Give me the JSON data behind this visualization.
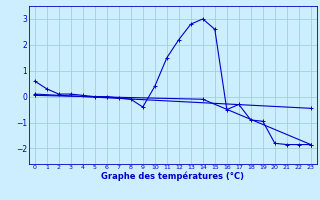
{
  "xlabel": "Graphe des températures (°C)",
  "background_color": "#cceeff",
  "line_color": "#0000cc",
  "xlim": [
    -0.5,
    23.5
  ],
  "ylim": [
    -2.6,
    3.5
  ],
  "yticks": [
    -2,
    -1,
    0,
    1,
    2,
    3
  ],
  "xticks": [
    0,
    1,
    2,
    3,
    4,
    5,
    6,
    7,
    8,
    9,
    10,
    11,
    12,
    13,
    14,
    15,
    16,
    17,
    18,
    19,
    20,
    21,
    22,
    23
  ],
  "line1_x": [
    0,
    1,
    2,
    3,
    4,
    5,
    6,
    7,
    8,
    9,
    10,
    11,
    12,
    13,
    14,
    15,
    16,
    17,
    18,
    19,
    20,
    21,
    22,
    23
  ],
  "line1_y": [
    0.6,
    0.3,
    0.1,
    0.1,
    0.05,
    0.0,
    0.0,
    -0.05,
    -0.1,
    -0.4,
    0.4,
    1.5,
    2.2,
    2.8,
    3.0,
    2.6,
    -0.5,
    -0.3,
    -0.9,
    -0.95,
    -1.8,
    -1.85,
    -1.85,
    -1.85
  ],
  "line2_x": [
    0,
    23
  ],
  "line2_y": [
    0.1,
    -0.45
  ],
  "line3_x": [
    0,
    14,
    23
  ],
  "line3_y": [
    0.05,
    -0.1,
    -1.85
  ],
  "grid_color": "#99cccc",
  "marker": "+"
}
